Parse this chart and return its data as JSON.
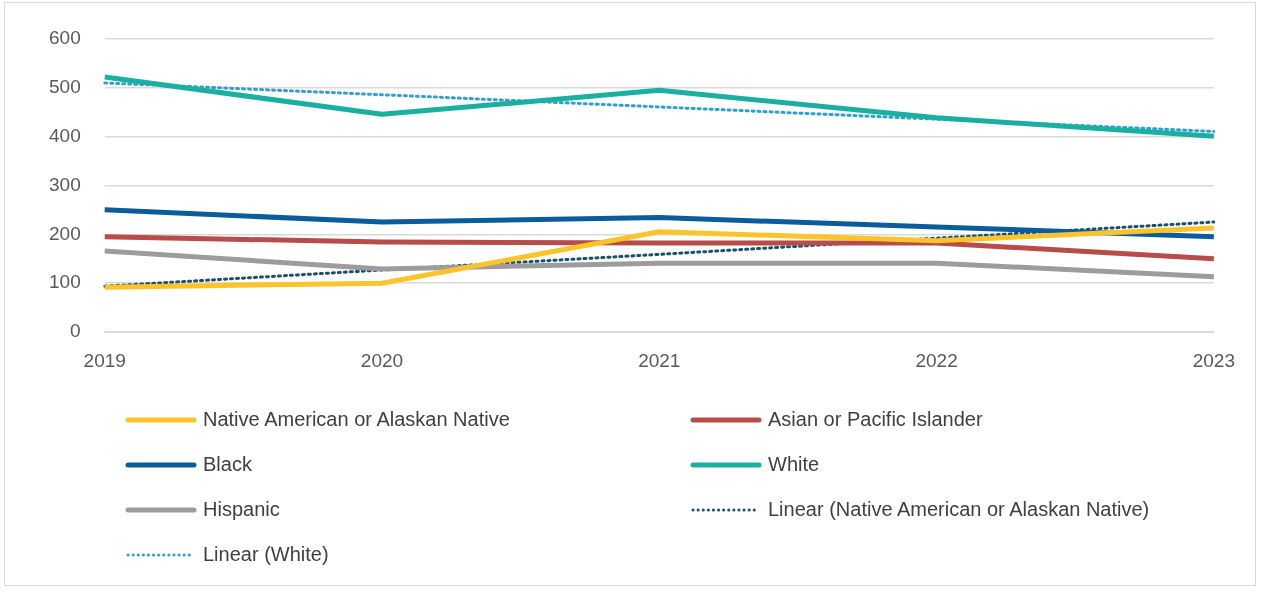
{
  "chart_data": {
    "type": "line",
    "categories": [
      "2019",
      "2020",
      "2021",
      "2022",
      "2023"
    ],
    "ylim": [
      0,
      600
    ],
    "yticks": [
      0,
      100,
      200,
      300,
      400,
      500,
      600
    ],
    "grid": "y",
    "legend": "bottom",
    "marker": "none",
    "series": [
      {
        "name": "Native American or Alaskan Native",
        "color": "#fcc32a",
        "values": [
          92,
          100,
          205,
          187,
          213
        ]
      },
      {
        "name": "Asian or Pacific Islander",
        "color": "#b84c4b",
        "values": [
          195,
          184,
          182,
          182,
          150
        ]
      },
      {
        "name": "Black",
        "color": "#0b5c9b",
        "values": [
          250,
          225,
          234,
          215,
          195
        ]
      },
      {
        "name": "White",
        "color": "#1aafa0",
        "values": [
          521,
          445,
          494,
          438,
          400
        ]
      },
      {
        "name": "Hispanic",
        "color": "#9c9c9c",
        "values": [
          166,
          129,
          141,
          141,
          113
        ]
      },
      {
        "name": "Linear (Native American or Alaskan Native)",
        "color": "#1a4f6e",
        "line_style": "dotted",
        "values": [
          94,
          127,
          159,
          192,
          225
        ]
      },
      {
        "name": "Linear (White)",
        "color": "#2aa0d8",
        "line_style": "dotted",
        "values": [
          509,
          485,
          460,
          435,
          410
        ]
      }
    ]
  }
}
